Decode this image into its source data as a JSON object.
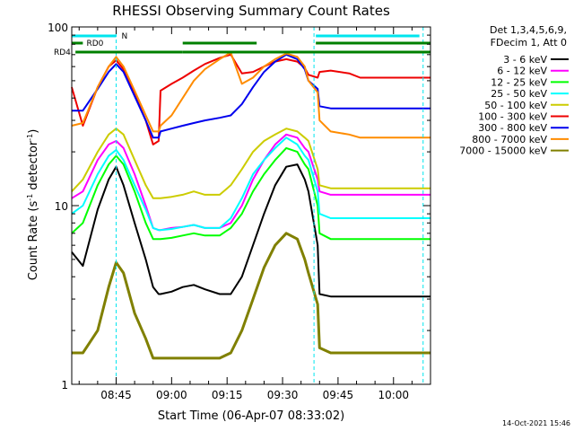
{
  "chart_data": {
    "type": "line",
    "title": "RHESSI Observing Summary Count Rates",
    "xlabel": "Start Time (06-Apr-07 08:33:02)",
    "ylabel_main": "Count Rate (s",
    "ylabel_sup1": "-1",
    "ylabel_mid": " detector",
    "ylabel_sup2": "-1",
    "ylabel_end": ")",
    "y_scale": "log",
    "ylim": [
      1,
      100
    ],
    "xlim_minutes_after_0833": [
      0,
      97
    ],
    "x_ticks": [
      {
        "label": "08:45",
        "minutes": 12
      },
      {
        "label": "09:00",
        "minutes": 27
      },
      {
        "label": "09:15",
        "minutes": 42
      },
      {
        "label": "09:30",
        "minutes": 57
      },
      {
        "label": "09:45",
        "minutes": 72
      },
      {
        "label": "10:00",
        "minutes": 87
      }
    ],
    "y_ticks": [
      {
        "label": "1",
        "value": 1
      },
      {
        "label": "10",
        "value": 10
      },
      {
        "label": "100",
        "value": 100
      }
    ],
    "legend_header": [
      "Det 1,3,4,5,6,9,",
      "FDecim 1, Att 0"
    ],
    "legend_position": "right",
    "flags": [
      {
        "label": "N",
        "color": "#00e5ee"
      },
      {
        "label": "RD0",
        "color": "#008000"
      },
      {
        "label": "RD4",
        "color": "#008000"
      }
    ],
    "series": [
      {
        "name": "3 - 6 keV",
        "color": "#000000"
      },
      {
        "name": "6 - 12 keV",
        "color": "#ff00ff"
      },
      {
        "name": "12 - 25 keV",
        "color": "#00ff00"
      },
      {
        "name": "25 - 50 keV",
        "color": "#00ffff"
      },
      {
        "name": "50 - 100 keV",
        "color": "#cccc00"
      },
      {
        "name": "100 - 300 keV",
        "color": "#ee0000"
      },
      {
        "name": "300 - 800 keV",
        "color": "#0000ee"
      },
      {
        "name": "800 - 7000 keV",
        "color": "#ff8c00"
      },
      {
        "name": "7000 - 15000 keV",
        "color": "#808000"
      }
    ],
    "series_profile": {
      "x_minutes": [
        0,
        3,
        7,
        10,
        12,
        14,
        17,
        20,
        22,
        23.5,
        24,
        27,
        30,
        33,
        36,
        40,
        43,
        46,
        49,
        52,
        55,
        58,
        61,
        63,
        64,
        66.5,
        67,
        70,
        75,
        78,
        82,
        86,
        90,
        94,
        97
      ],
      "levels": [
        [
          5.5,
          4.6,
          9.5,
          14,
          16.5,
          13,
          8,
          5,
          3.5,
          3.2,
          3.2,
          3.3,
          3.5,
          3.6,
          3.4,
          3.2,
          3.2,
          4,
          6,
          9,
          13,
          16.5,
          17,
          14,
          12,
          6,
          3.2,
          3.1,
          3.1,
          3.1,
          3.1,
          3.1,
          3.1,
          3.1,
          3.1
        ],
        [
          11,
          12,
          18,
          22,
          23,
          21,
          15,
          10,
          7.5,
          7.3,
          7.3,
          7.5,
          7.6,
          7.8,
          7.5,
          7.5,
          8,
          10,
          14,
          18,
          22,
          25,
          24,
          21,
          20,
          14,
          12,
          11.5,
          11.5,
          11.5,
          11.5,
          11.5,
          11.5,
          11.5,
          11.5
        ],
        [
          7,
          8,
          13,
          17,
          19,
          17,
          12,
          8,
          6.5,
          6.5,
          6.5,
          6.6,
          6.8,
          7,
          6.8,
          6.8,
          7.5,
          9,
          12,
          15,
          18,
          21,
          20,
          17,
          16,
          10,
          7,
          6.5,
          6.5,
          6.5,
          6.5,
          6.5,
          6.5,
          6.5,
          6.5
        ],
        [
          9,
          10,
          15,
          19,
          20.5,
          18,
          13,
          9.5,
          7.5,
          7.3,
          7.3,
          7.4,
          7.6,
          7.8,
          7.5,
          7.5,
          8.5,
          11,
          15,
          18,
          21,
          24,
          22,
          19,
          18,
          12,
          9,
          8.5,
          8.5,
          8.5,
          8.5,
          8.5,
          8.5,
          8.5,
          8.5
        ],
        [
          12,
          14,
          20,
          25,
          27,
          25,
          18,
          13,
          11,
          11,
          11,
          11.2,
          11.5,
          12,
          11.5,
          11.5,
          13,
          16,
          20,
          23,
          25,
          27,
          26,
          24,
          23,
          16,
          13,
          12.5,
          12.5,
          12.5,
          12.5,
          12.5,
          12.5,
          12.5,
          12.5
        ],
        [
          46,
          28,
          46,
          60,
          65,
          58,
          42,
          30,
          22,
          23,
          44,
          48,
          52,
          57,
          62,
          67,
          70,
          55,
          56,
          60,
          64,
          66,
          64,
          59,
          54,
          52,
          56,
          57,
          55,
          52,
          52,
          52,
          52,
          52,
          52
        ],
        [
          34,
          34,
          45,
          56,
          62,
          56,
          41,
          30,
          24,
          24,
          26,
          27,
          28,
          29,
          30,
          31,
          32,
          37,
          46,
          56,
          64,
          70,
          66,
          58,
          50,
          45,
          36,
          35,
          35,
          35,
          35,
          35,
          35,
          35,
          35
        ],
        [
          28,
          29,
          46,
          60,
          68,
          60,
          44,
          32,
          26,
          26,
          28,
          32,
          40,
          50,
          58,
          66,
          72,
          48,
          52,
          60,
          66,
          71,
          68,
          60,
          50,
          43,
          30,
          26,
          25,
          24,
          24,
          24,
          24,
          24,
          24
        ],
        [
          1.5,
          1.5,
          2,
          3.5,
          4.8,
          4.2,
          2.5,
          1.8,
          1.4,
          1.4,
          1.4,
          1.4,
          1.4,
          1.4,
          1.4,
          1.4,
          1.5,
          2,
          3,
          4.5,
          6,
          7,
          6.5,
          5,
          4.2,
          2.8,
          1.6,
          1.5,
          1.5,
          1.5,
          1.5,
          1.5,
          1.5,
          1.5,
          1.5
        ]
      ]
    }
  },
  "timestamp": "14-Oct-2021 15:46"
}
